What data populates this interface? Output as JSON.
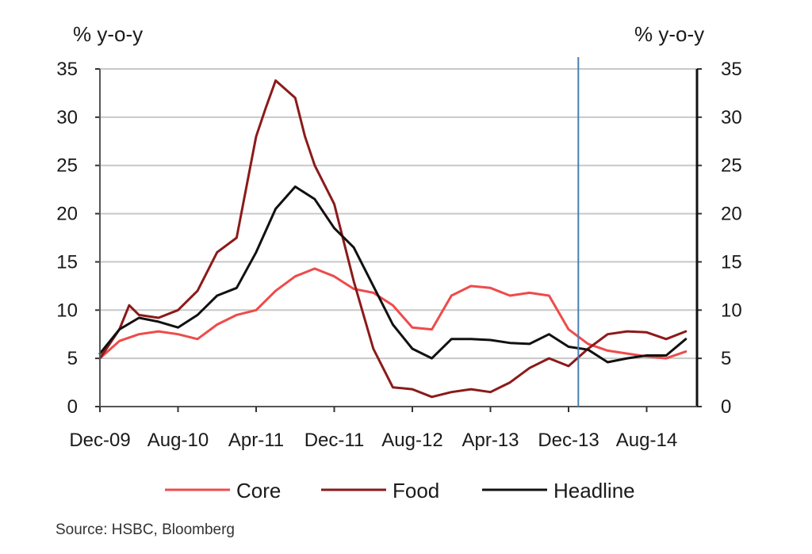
{
  "chart_data": {
    "type": "line",
    "left_axis_label": "% y-o-y",
    "right_axis_label": "% y-o-y",
    "ylim": [
      0,
      35
    ],
    "y_ticks": [
      0,
      5,
      10,
      15,
      20,
      25,
      30,
      35
    ],
    "x_tick_labels": [
      "Dec-09",
      "Aug-10",
      "Apr-11",
      "Dec-11",
      "Aug-12",
      "Apr-13",
      "Dec-13",
      "Aug-14"
    ],
    "x_months_between_ticks": 8,
    "vertical_marker_month": 49,
    "series": [
      {
        "name": "Core",
        "color": "#ee4b4b",
        "x": [
          0,
          2,
          4,
          6,
          8,
          10,
          12,
          14,
          16,
          18,
          20,
          22,
          24,
          26,
          28,
          30,
          32,
          34,
          36,
          38,
          40,
          42,
          44,
          46,
          48,
          50,
          52,
          54,
          56,
          58,
          60
        ],
        "values": [
          5.0,
          6.8,
          7.5,
          7.8,
          7.5,
          7.0,
          8.5,
          9.5,
          10.0,
          12.0,
          13.5,
          14.3,
          13.5,
          12.2,
          11.8,
          10.5,
          8.2,
          8.0,
          11.5,
          12.5,
          12.3,
          11.5,
          11.8,
          11.5,
          8.0,
          6.5,
          5.8,
          5.5,
          5.2,
          5.0,
          5.7
        ]
      },
      {
        "name": "Food",
        "color": "#8b1a1a",
        "x": [
          0,
          2,
          3,
          4,
          6,
          8,
          10,
          12,
          14,
          16,
          17,
          18,
          20,
          21,
          22,
          24,
          26,
          28,
          30,
          32,
          34,
          36,
          38,
          40,
          42,
          44,
          46,
          48,
          50,
          52,
          54,
          56,
          58,
          60
        ],
        "values": [
          5.0,
          8.0,
          10.5,
          9.5,
          9.2,
          10.0,
          12.0,
          16.0,
          17.5,
          28.0,
          31.0,
          33.8,
          32.0,
          28.0,
          25.0,
          21.0,
          13.0,
          6.0,
          2.0,
          1.8,
          1.0,
          1.5,
          1.8,
          1.5,
          2.5,
          4.0,
          5.0,
          4.2,
          6.0,
          7.5,
          7.8,
          7.7,
          7.0,
          7.8
        ]
      },
      {
        "name": "Headline",
        "color": "#111111",
        "x": [
          0,
          2,
          4,
          6,
          8,
          10,
          12,
          14,
          16,
          18,
          20,
          22,
          24,
          26,
          28,
          30,
          32,
          34,
          36,
          38,
          40,
          42,
          44,
          46,
          48,
          50,
          52,
          54,
          56,
          58,
          60
        ],
        "values": [
          5.5,
          8.0,
          9.2,
          8.8,
          8.2,
          9.5,
          11.5,
          12.3,
          16.0,
          20.5,
          22.8,
          21.5,
          18.5,
          16.5,
          12.5,
          8.5,
          6.0,
          5.0,
          7.0,
          7.0,
          6.9,
          6.6,
          6.5,
          7.5,
          6.2,
          5.9,
          4.6,
          5.0,
          5.3,
          5.3,
          7.0
        ]
      }
    ],
    "legend": [
      "Core",
      "Food",
      "Headline"
    ],
    "legend_position": "bottom",
    "grid": true
  },
  "source_text": "Source: HSBC, Bloomberg"
}
